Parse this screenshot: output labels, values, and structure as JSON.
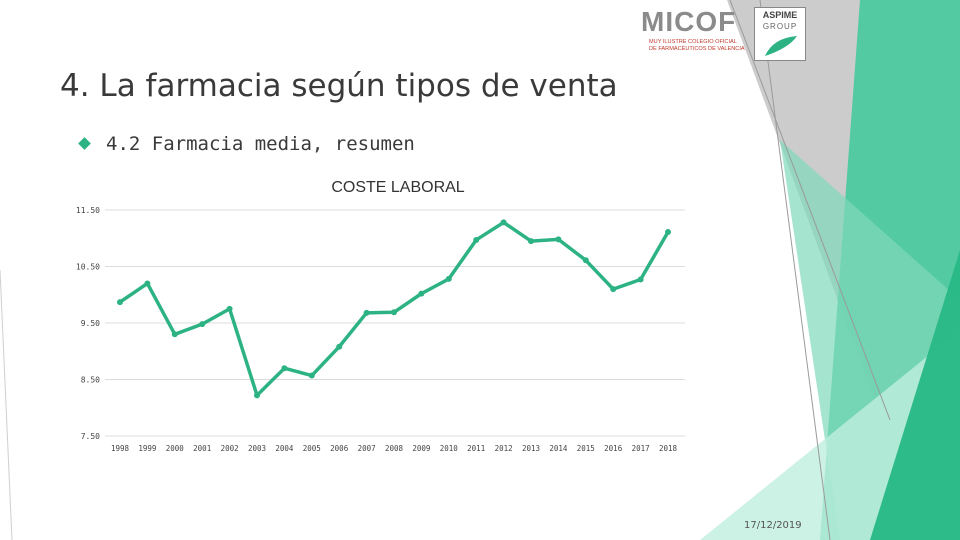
{
  "slide": {
    "title": "4. La farmacia según tipos de venta",
    "bullet": "4.2 Farmacia media, resumen",
    "date": "17/12/2019",
    "accent_color": "#2db383",
    "bullet_icon": "diamond-icon"
  },
  "logos": {
    "micof": {
      "name": "MICOF",
      "line1": "MUY ILUSTRE COLEGIO OFICIAL",
      "line2": "DE FARMACÉUTICOS DE VALENCIA"
    },
    "aspime": {
      "name": "ASPIME",
      "group": "GROUP"
    }
  },
  "chart_data": {
    "type": "line",
    "title": "COSTE LABORAL",
    "xlabel": "",
    "ylabel": "",
    "categories": [
      "1998",
      "1999",
      "2000",
      "2001",
      "2002",
      "2003",
      "2004",
      "2005",
      "2006",
      "2007",
      "2008",
      "2009",
      "2010",
      "2011",
      "2012",
      "2013",
      "2014",
      "2015",
      "2016",
      "2017",
      "2018"
    ],
    "series": [
      {
        "values": [
          9.87,
          10.2,
          9.3,
          9.48,
          9.75,
          8.22,
          8.7,
          8.57,
          9.08,
          9.68,
          9.69,
          10.02,
          10.28,
          10.97,
          11.28,
          10.95,
          10.98,
          10.61,
          10.1,
          10.27,
          11.11
        ],
        "color": "#2db383"
      }
    ],
    "y_ticks": [
      "11.50",
      "10.50",
      "9.50",
      "8.50",
      "7.50"
    ],
    "y_tick_values": [
      11.5,
      10.5,
      9.5,
      8.5,
      7.5
    ],
    "ylim": [
      7.5,
      11.5
    ],
    "grid": true,
    "legend": "none"
  }
}
